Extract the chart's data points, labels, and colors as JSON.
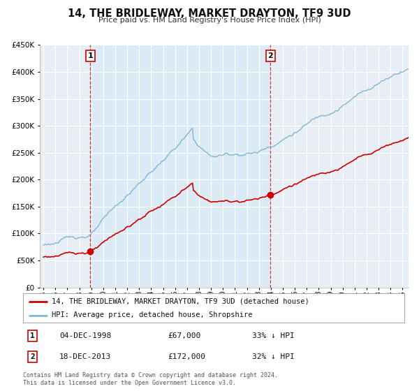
{
  "title": "14, THE BRIDLEWAY, MARKET DRAYTON, TF9 3UD",
  "subtitle": "Price paid vs. HM Land Registry's House Price Index (HPI)",
  "legend_line1": "14, THE BRIDLEWAY, MARKET DRAYTON, TF9 3UD (detached house)",
  "legend_line2": "HPI: Average price, detached house, Shropshire",
  "annotation1_date": "04-DEC-1998",
  "annotation1_price": "£67,000",
  "annotation1_hpi": "33% ↓ HPI",
  "annotation1_year": 1998.92,
  "annotation1_value": 67000,
  "annotation2_date": "18-DEC-2013",
  "annotation2_price": "£172,000",
  "annotation2_hpi": "32% ↓ HPI",
  "annotation2_year": 2013.96,
  "annotation2_value": 172000,
  "hpi_color": "#7eb8d4",
  "hpi_fill_color": "#daeaf5",
  "price_color": "#cc0000",
  "bg_color": "#ffffff",
  "plot_bg_color": "#e8eef5",
  "grid_color": "#ffffff",
  "ann_box_color": "#cc0000",
  "footer_text": "Contains HM Land Registry data © Crown copyright and database right 2024.\nThis data is licensed under the Open Government Licence v3.0.",
  "ylim": [
    0,
    450000
  ],
  "xlim_start": 1994.7,
  "xlim_end": 2025.5
}
